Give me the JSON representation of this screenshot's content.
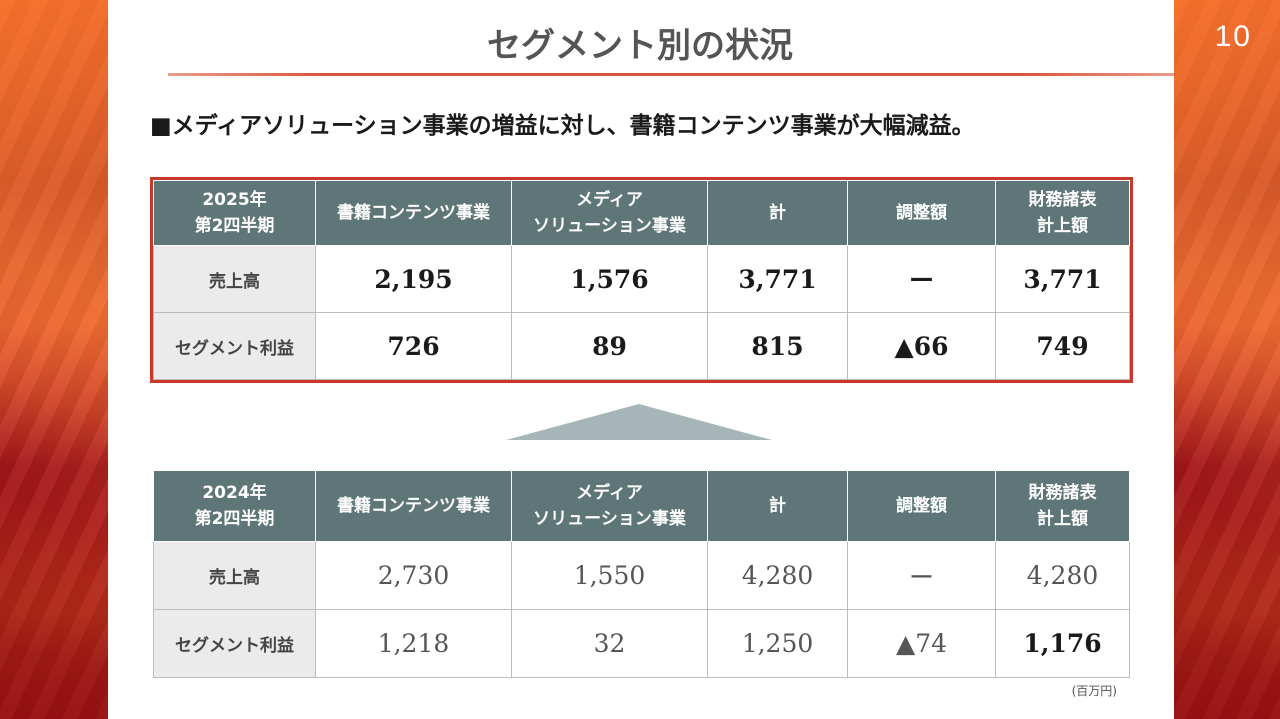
{
  "page": {
    "number": "10",
    "title": "セグメント別の状況",
    "subtitle": "■メディアソリューション事業の増益に対し、書籍コンテンツ事業が大幅減益。",
    "unit_note": "(百万円)"
  },
  "colors": {
    "header_bg": "#5f7679",
    "highlight_border": "#c8372a",
    "accent_line": "#d9583a",
    "arrow": "#a6b6b8"
  },
  "table_2025": {
    "period_line1": "2025年",
    "period_line2": "第2四半期",
    "columns": {
      "books": "書籍コンテンツ事業",
      "media_line1": "メディア",
      "media_line2": "ソリューション事業",
      "total": "計",
      "adjustment": "調整額",
      "fs_line1": "財務諸表",
      "fs_line2": "計上額"
    },
    "rows": {
      "sales": {
        "label": "売上高",
        "books": "2,195",
        "media": "1,576",
        "total": "3,771",
        "adjustment": "ー",
        "fs": "3,771"
      },
      "profit": {
        "label": "セグメント利益",
        "books": "726",
        "media": "89",
        "total": "815",
        "adjustment": "▲66",
        "fs": "749"
      }
    }
  },
  "table_2024": {
    "period_line1": "2024年",
    "period_line2": "第2四半期",
    "columns": {
      "books": "書籍コンテンツ事業",
      "media_line1": "メディア",
      "media_line2": "ソリューション事業",
      "total": "計",
      "adjustment": "調整額",
      "fs_line1": "財務諸表",
      "fs_line2": "計上額"
    },
    "rows": {
      "sales": {
        "label": "売上高",
        "books": "2,730",
        "media": "1,550",
        "total": "4,280",
        "adjustment": "ー",
        "fs": "4,280"
      },
      "profit": {
        "label": "セグメント利益",
        "books": "1,218",
        "media": "32",
        "total": "1,250",
        "adjustment": "▲74",
        "fs": "1,176"
      }
    }
  }
}
